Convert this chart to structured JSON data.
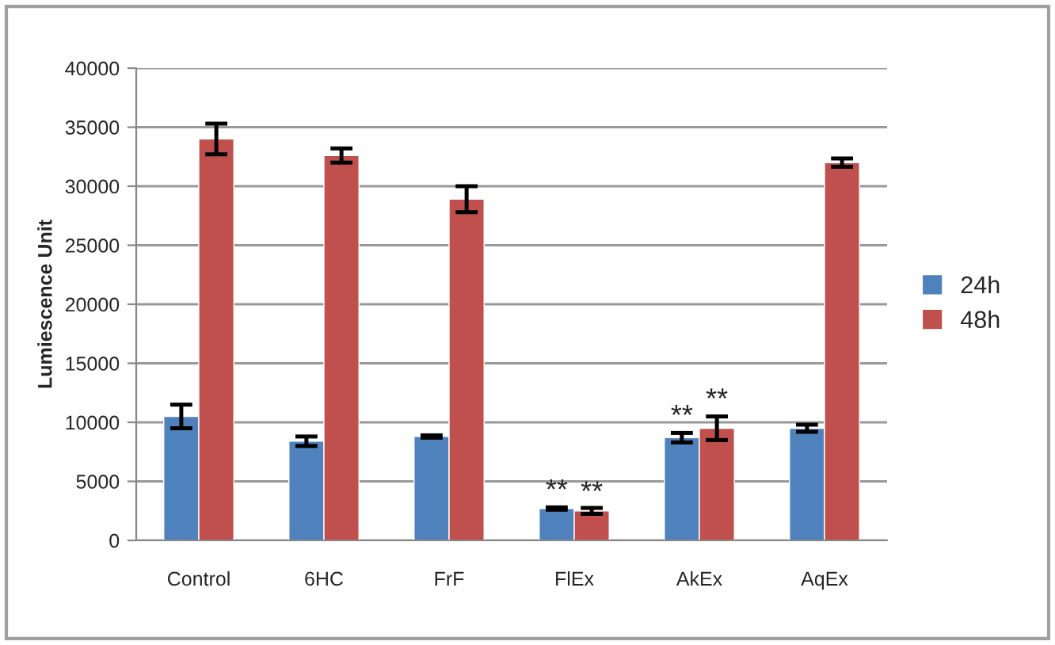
{
  "chart_data": {
    "type": "bar",
    "ylabel": "Lumiescence Unit",
    "categories": [
      "Control",
      "6HC",
      "FrF",
      "FlEx",
      "AkEx",
      "AqEx"
    ],
    "series": [
      {
        "name": "24h",
        "color": "#4f81bd",
        "values": [
          10500,
          8400,
          8800,
          2700,
          8700,
          9500
        ],
        "errors": [
          1000,
          400,
          100,
          100,
          400,
          300
        ]
      },
      {
        "name": "48h",
        "color": "#c0504d",
        "values": [
          34000,
          32600,
          28900,
          2500,
          9500,
          32000
        ],
        "errors": [
          1300,
          600,
          1100,
          250,
          1000,
          350
        ]
      }
    ],
    "ylim": [
      0,
      40000
    ],
    "yticks": [
      0,
      5000,
      10000,
      15000,
      20000,
      25000,
      30000,
      35000,
      40000
    ],
    "grid": "y",
    "legend": "right",
    "annotations": [
      {
        "text": "**",
        "x": "FlEx",
        "y": 3000
      },
      {
        "text": "**",
        "x": "FlEx",
        "y": 2850
      },
      {
        "text": "**",
        "x": "AkEx",
        "y": 9300
      },
      {
        "text": "**",
        "x": "AkEx",
        "y": 10700
      }
    ]
  }
}
